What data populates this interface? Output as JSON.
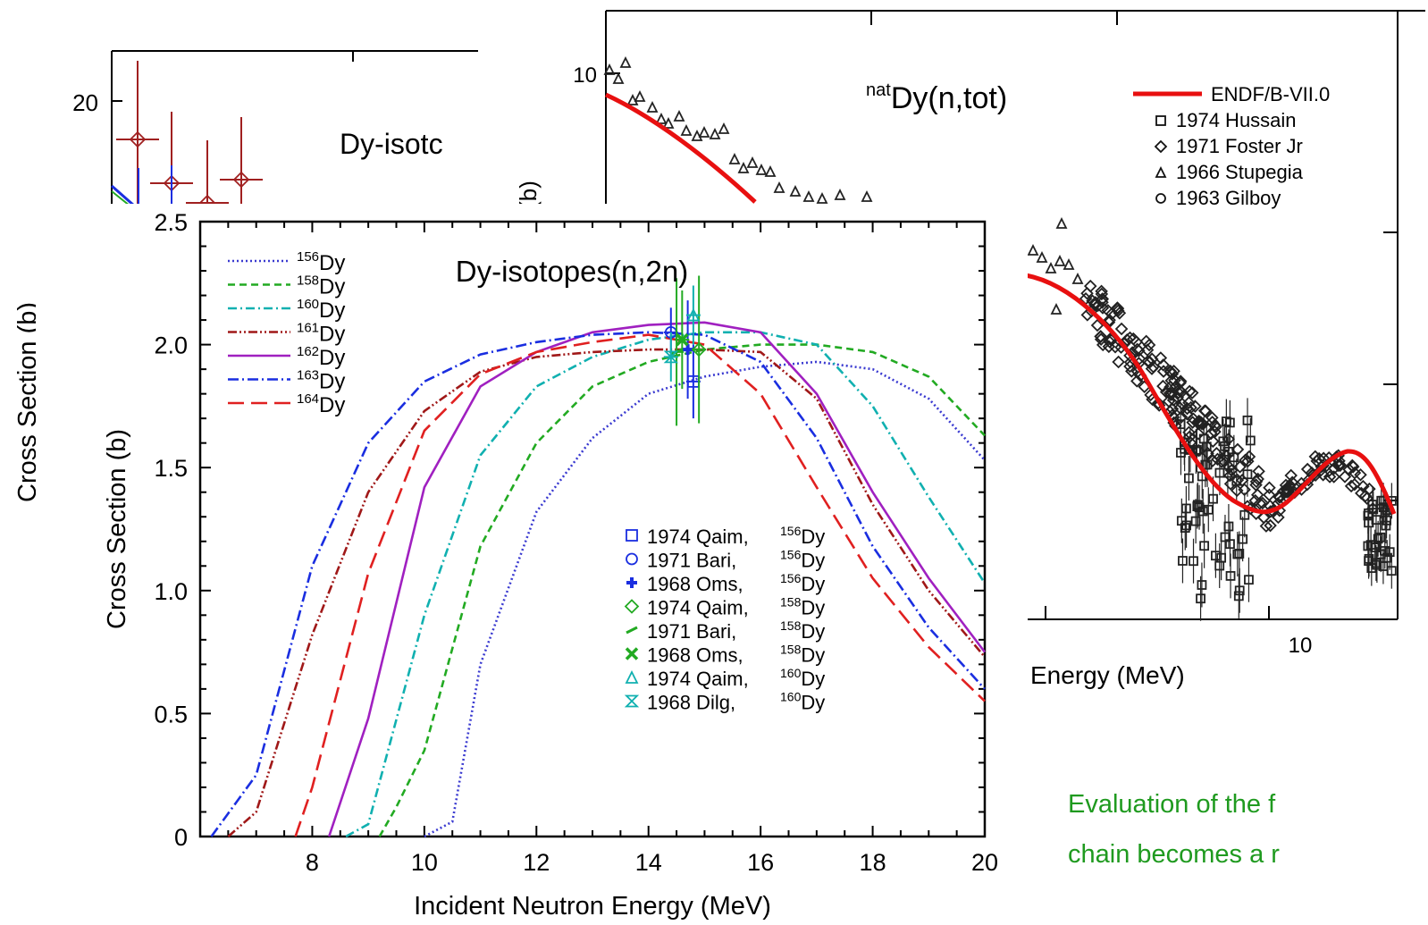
{
  "outer_ylabel": "Cross Section (b)",
  "caption": {
    "line1": "Evaluation of the f",
    "line2": "chain becomes a r"
  },
  "chart_data": [
    {
      "type": "line",
      "title": "Dy-isotopes(n,2n)",
      "xlabel": "Incident Neutron Energy (MeV)",
      "ylabel": "Cross Section (b)",
      "xlim": [
        6,
        20
      ],
      "ylim": [
        0,
        2.5
      ],
      "xticks": [
        "8",
        "10",
        "12",
        "14",
        "16",
        "18",
        "20"
      ],
      "yticks": [
        "0",
        "0.5",
        "1.0",
        "1.5",
        "2.0",
        "2.5"
      ],
      "legend_position": "top-left",
      "series": [
        {
          "name": "156Dy",
          "color": "#3a3ad0",
          "dash": "2,3",
          "points": [
            [
              10.0,
              0.0
            ],
            [
              10.5,
              0.06
            ],
            [
              11,
              0.7
            ],
            [
              12,
              1.32
            ],
            [
              13,
              1.62
            ],
            [
              14,
              1.8
            ],
            [
              15,
              1.87
            ],
            [
              16,
              1.91
            ],
            [
              17,
              1.93
            ],
            [
              18,
              1.9
            ],
            [
              19,
              1.78
            ],
            [
              20,
              1.53
            ]
          ]
        },
        {
          "name": "158Dy",
          "color": "#22aa22",
          "dash": "8,5",
          "points": [
            [
              9.2,
              0.0
            ],
            [
              9.5,
              0.12
            ],
            [
              10,
              0.35
            ],
            [
              11,
              1.18
            ],
            [
              12,
              1.6
            ],
            [
              13,
              1.83
            ],
            [
              14,
              1.93
            ],
            [
              15,
              1.98
            ],
            [
              16,
              2.0
            ],
            [
              17,
              2.0
            ],
            [
              18,
              1.97
            ],
            [
              19,
              1.87
            ],
            [
              20,
              1.63
            ]
          ]
        },
        {
          "name": "160Dy",
          "color": "#10b0b0",
          "dash": "10,4,2,4",
          "points": [
            [
              8.6,
              0.0
            ],
            [
              9.0,
              0.05
            ],
            [
              10,
              0.9
            ],
            [
              11,
              1.55
            ],
            [
              12,
              1.83
            ],
            [
              13,
              1.95
            ],
            [
              14,
              2.02
            ],
            [
              15,
              2.05
            ],
            [
              16,
              2.05
            ],
            [
              17,
              2.0
            ],
            [
              18,
              1.75
            ],
            [
              19,
              1.38
            ],
            [
              20,
              1.03
            ]
          ]
        },
        {
          "name": "161Dy",
          "color": "#a01818",
          "dash": "10,3,2,3,2,3",
          "points": [
            [
              6.5,
              0.0
            ],
            [
              7.0,
              0.1
            ],
            [
              8,
              0.82
            ],
            [
              9,
              1.4
            ],
            [
              10,
              1.73
            ],
            [
              11,
              1.89
            ],
            [
              12,
              1.95
            ],
            [
              13,
              1.97
            ],
            [
              14,
              1.98
            ],
            [
              15,
              1.98
            ],
            [
              16,
              1.97
            ],
            [
              17,
              1.78
            ],
            [
              18,
              1.35
            ],
            [
              19,
              1.0
            ],
            [
              20,
              0.73
            ]
          ]
        },
        {
          "name": "162Dy",
          "color": "#a020c0",
          "dash": "",
          "points": [
            [
              8.3,
              0.0
            ],
            [
              9,
              0.48
            ],
            [
              10,
              1.42
            ],
            [
              11,
              1.83
            ],
            [
              12,
              1.97
            ],
            [
              13,
              2.05
            ],
            [
              14,
              2.08
            ],
            [
              15,
              2.09
            ],
            [
              16,
              2.05
            ],
            [
              17,
              1.8
            ],
            [
              18,
              1.4
            ],
            [
              19,
              1.05
            ],
            [
              20,
              0.75
            ]
          ]
        },
        {
          "name": "163Dy",
          "color": "#1a2ee0",
          "dash": "12,4,2,4",
          "points": [
            [
              6.2,
              0.0
            ],
            [
              7.0,
              0.25
            ],
            [
              8,
              1.1
            ],
            [
              9,
              1.6
            ],
            [
              10,
              1.85
            ],
            [
              11,
              1.96
            ],
            [
              12,
              2.01
            ],
            [
              13,
              2.04
            ],
            [
              14,
              2.05
            ],
            [
              15,
              2.04
            ],
            [
              16,
              1.93
            ],
            [
              17,
              1.62
            ],
            [
              18,
              1.18
            ],
            [
              19,
              0.85
            ],
            [
              20,
              0.6
            ]
          ]
        },
        {
          "name": "164Dy",
          "color": "#e02020",
          "dash": "18,8",
          "points": [
            [
              7.7,
              0.0
            ],
            [
              8.0,
              0.2
            ],
            [
              9,
              1.07
            ],
            [
              10,
              1.65
            ],
            [
              11,
              1.88
            ],
            [
              12,
              1.97
            ],
            [
              13,
              2.01
            ],
            [
              14,
              2.04
            ],
            [
              15,
              2.0
            ],
            [
              16,
              1.8
            ],
            [
              17,
              1.42
            ],
            [
              18,
              1.05
            ],
            [
              19,
              0.77
            ],
            [
              20,
              0.55
            ]
          ]
        }
      ],
      "experiments": [
        {
          "label": "1974 Qaim,",
          "isotope": "156Dy",
          "marker": "square",
          "color": "#1a2ee0",
          "x": 14.8,
          "y": 1.85,
          "err": 0.15
        },
        {
          "label": "1971 Bari,",
          "isotope": "156Dy",
          "marker": "circle",
          "color": "#1a2ee0",
          "x": 14.4,
          "y": 2.05,
          "err": 0.1
        },
        {
          "label": "1968 Oms,",
          "isotope": "156Dy",
          "marker": "plus",
          "color": "#1a2ee0",
          "x": 14.7,
          "y": 1.98,
          "err": 0.2
        },
        {
          "label": "1974 Qaim,",
          "isotope": "158Dy",
          "marker": "diamond",
          "color": "#22aa22",
          "x": 14.9,
          "y": 1.98,
          "err": 0.3
        },
        {
          "label": "1971 Bari,",
          "isotope": "158Dy",
          "marker": "slash",
          "color": "#22aa22",
          "x": 14.5,
          "y": 1.97,
          "err": 0.3
        },
        {
          "label": "1968 Oms,",
          "isotope": "158Dy",
          "marker": "xbox",
          "color": "#22aa22",
          "x": 14.6,
          "y": 2.02,
          "err": 0.2
        },
        {
          "label": "1974 Qaim,",
          "isotope": "160Dy",
          "marker": "triangle",
          "color": "#10b0b0",
          "x": 14.8,
          "y": 2.12,
          "err": 0.12
        },
        {
          "label": "1968 Dilg,",
          "isotope": "160Dy",
          "marker": "hourglass",
          "color": "#10b0b0",
          "x": 14.4,
          "y": 1.95,
          "err": 0.1
        }
      ]
    },
    {
      "type": "scatter",
      "title": "natDy(n,tot)",
      "xlabel": "Energy (MeV)",
      "ylabel": "(b)",
      "xticks": [
        "10"
      ],
      "yticks": [
        "10"
      ],
      "legend": [
        {
          "label": "ENDF/B-VII.0",
          "marker": "line",
          "color": "#e81010"
        },
        {
          "label": "1974 Hussain",
          "marker": "square",
          "color": "#111111"
        },
        {
          "label": "1971 Foster Jr",
          "marker": "diamond",
          "color": "#111111"
        },
        {
          "label": "1966 Stupegia",
          "marker": "triangle",
          "color": "#111111"
        },
        {
          "label": "1963 Gilboy",
          "marker": "circle",
          "color": "#111111"
        }
      ]
    },
    {
      "type": "scatter",
      "title": "Dy-isotc",
      "yticks": [
        "20"
      ]
    }
  ]
}
